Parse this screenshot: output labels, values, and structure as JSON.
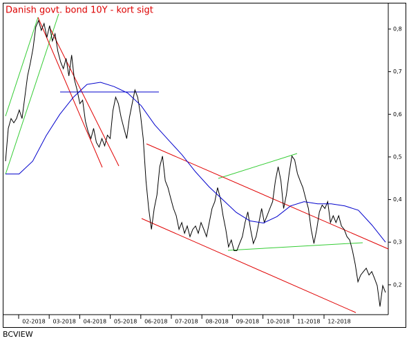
{
  "chart_data": {
    "type": "line",
    "title": "Danish govt. bond 10Y - kort sigt",
    "source": "BCVIEW",
    "x_labels": [
      "02-2018",
      "03-2018",
      "04-2018",
      "05-2018",
      "06-2018",
      "07-2018",
      "08-2018",
      "09-2018",
      "10-2018",
      "11-2018",
      "12-2018"
    ],
    "series": [
      {
        "color": "#000000",
        "values": [
          0.49,
          0.567,
          0.59,
          0.58,
          0.59,
          0.61,
          0.59,
          0.64,
          0.69,
          0.72,
          0.755,
          0.805,
          0.82,
          0.797,
          0.813,
          0.78,
          0.808,
          0.772,
          0.789,
          0.748,
          0.723,
          0.707,
          0.731,
          0.69,
          0.739,
          0.682,
          0.657,
          0.625,
          0.633,
          0.584,
          0.559,
          0.543,
          0.567,
          0.534,
          0.523,
          0.543,
          0.526,
          0.551,
          0.543,
          0.608,
          0.64,
          0.625,
          0.592,
          0.567,
          0.543,
          0.592,
          0.625,
          0.657,
          0.64,
          0.6,
          0.543,
          0.444,
          0.379,
          0.33,
          0.379,
          0.411,
          0.477,
          0.502,
          0.444,
          0.428,
          0.403,
          0.379,
          0.362,
          0.33,
          0.346,
          0.321,
          0.338,
          0.313,
          0.33,
          0.338,
          0.321,
          0.346,
          0.33,
          0.313,
          0.346,
          0.379,
          0.395,
          0.428,
          0.403,
          0.362,
          0.33,
          0.289,
          0.305,
          0.28,
          0.28,
          0.297,
          0.313,
          0.346,
          0.371,
          0.33,
          0.297,
          0.313,
          0.346,
          0.379,
          0.346,
          0.362,
          0.379,
          0.395,
          0.444,
          0.477,
          0.444,
          0.379,
          0.411,
          0.461,
          0.502,
          0.493,
          0.461,
          0.444,
          0.428,
          0.403,
          0.379,
          0.33,
          0.297,
          0.33,
          0.371,
          0.387,
          0.379,
          0.395,
          0.346,
          0.362,
          0.346,
          0.362,
          0.338,
          0.33,
          0.313,
          0.305,
          0.28,
          0.248,
          0.207,
          0.223,
          0.231,
          0.239,
          0.223,
          0.231,
          0.215,
          0.198,
          0.149,
          0.198,
          0.182
        ]
      },
      {
        "color": "#0000cc",
        "values": [
          0.46,
          0.46,
          0.49,
          0.55,
          0.6,
          0.64,
          0.67,
          0.675,
          0.665,
          0.65,
          0.62,
          0.575,
          0.54,
          0.505,
          0.465,
          0.43,
          0.4,
          0.37,
          0.35,
          0.345,
          0.36,
          0.385,
          0.395,
          0.39,
          0.39,
          0.385,
          0.375,
          0.34,
          0.3
        ]
      }
    ],
    "ylim": [
      0.13,
      0.86
    ],
    "yticks": [
      {
        "value": 0.2,
        "label": "0,2"
      },
      {
        "value": 0.3,
        "label": "0,3"
      },
      {
        "value": 0.4,
        "label": "0,4"
      },
      {
        "value": 0.5,
        "label": "0,5"
      },
      {
        "value": 0.6,
        "label": "0,6"
      },
      {
        "value": 0.7,
        "label": "0,7"
      },
      {
        "value": 0.8,
        "label": "0,8"
      }
    ]
  }
}
